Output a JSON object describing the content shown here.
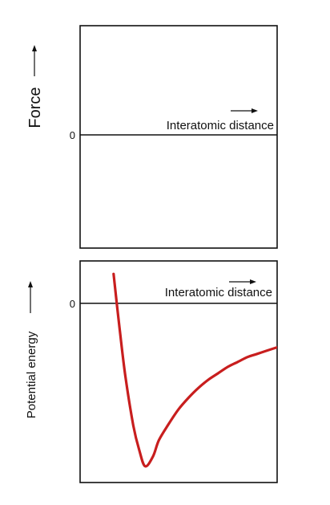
{
  "chart_data": [
    {
      "type": "line",
      "zero_label": "0",
      "xlabel": "Interatomic distance",
      "ylabel": "Force",
      "series": []
    },
    {
      "type": "line",
      "zero_label": "0",
      "xlabel": "Interatomic distance",
      "ylabel": "Potential energy",
      "series": [
        {
          "color": "#c81e1e",
          "x": [
            0.17,
            0.2,
            0.23,
            0.27,
            0.3,
            0.33,
            0.37,
            0.4,
            0.45,
            0.5,
            0.55,
            0.6,
            0.65,
            0.7,
            0.75,
            0.8,
            0.85,
            0.9,
            1.0
          ],
          "y": [
            0.18,
            -0.15,
            -0.45,
            -0.75,
            -0.9,
            -1.0,
            -0.94,
            -0.84,
            -0.74,
            -0.65,
            -0.58,
            -0.52,
            -0.47,
            -0.43,
            -0.39,
            -0.36,
            -0.33,
            -0.31,
            -0.27
          ]
        }
      ],
      "xlim": [
        0,
        1
      ],
      "ylim": [
        -1.1,
        0.26
      ]
    }
  ]
}
